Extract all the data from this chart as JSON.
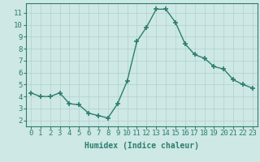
{
  "x": [
    0,
    1,
    2,
    3,
    4,
    5,
    6,
    7,
    8,
    9,
    10,
    11,
    12,
    13,
    14,
    15,
    16,
    17,
    18,
    19,
    20,
    21,
    22,
    23
  ],
  "y": [
    4.3,
    4.0,
    4.0,
    4.3,
    3.4,
    3.3,
    2.6,
    2.4,
    2.2,
    3.4,
    5.3,
    8.6,
    9.8,
    11.3,
    11.3,
    10.2,
    8.4,
    7.5,
    7.2,
    6.5,
    6.3,
    5.4,
    5.0,
    4.7
  ],
  "line_color": "#2e7d6e",
  "marker": "+",
  "markersize": 4,
  "linewidth": 1.0,
  "bg_color": "#cde8e5",
  "grid_color": "#b0d0cc",
  "xlabel": "Humidex (Indice chaleur)",
  "xlim": [
    -0.5,
    23.5
  ],
  "ylim": [
    1.5,
    11.8
  ],
  "yticks": [
    2,
    3,
    4,
    5,
    6,
    7,
    8,
    9,
    10,
    11
  ],
  "xticks": [
    0,
    1,
    2,
    3,
    4,
    5,
    6,
    7,
    8,
    9,
    10,
    11,
    12,
    13,
    14,
    15,
    16,
    17,
    18,
    19,
    20,
    21,
    22,
    23
  ],
  "xlabel_fontsize": 7,
  "tick_fontsize": 6.5
}
